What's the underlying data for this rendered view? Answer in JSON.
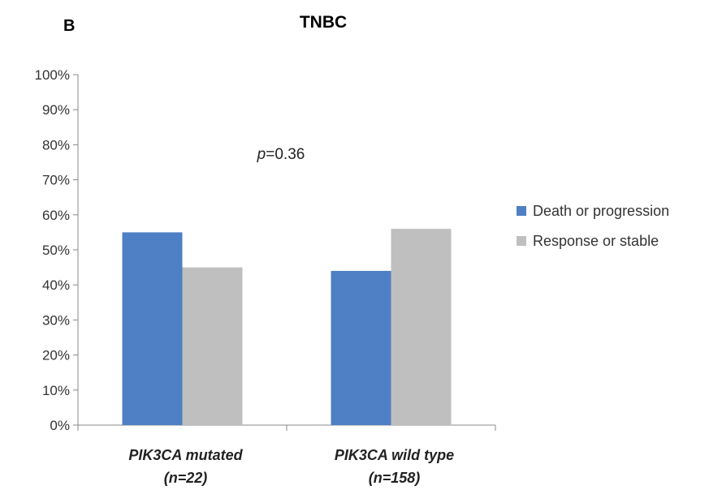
{
  "panel_label": "B",
  "colors": {
    "axis": "#888888",
    "series": [
      "#4f7fc4",
      "#bfbfbf"
    ]
  },
  "chart_data": {
    "type": "bar",
    "title": "TNBC",
    "categories": [
      {
        "line1": "PIK3CA mutated",
        "line2": "(n=22)"
      },
      {
        "line1": "PIK3CA wild type",
        "line2": "(n=158)"
      }
    ],
    "series": [
      {
        "name": "Death or progression",
        "values": [
          55,
          44
        ]
      },
      {
        "name": "Response or stable",
        "values": [
          45,
          56
        ]
      }
    ],
    "ylim": [
      0,
      100
    ],
    "yticks": [
      0,
      10,
      20,
      30,
      40,
      50,
      60,
      70,
      80,
      90,
      100
    ],
    "ytick_suffix": "%",
    "annotation": {
      "italic_part": "p",
      "rest": "=0.36"
    },
    "legend_position": "right",
    "grid": false
  }
}
